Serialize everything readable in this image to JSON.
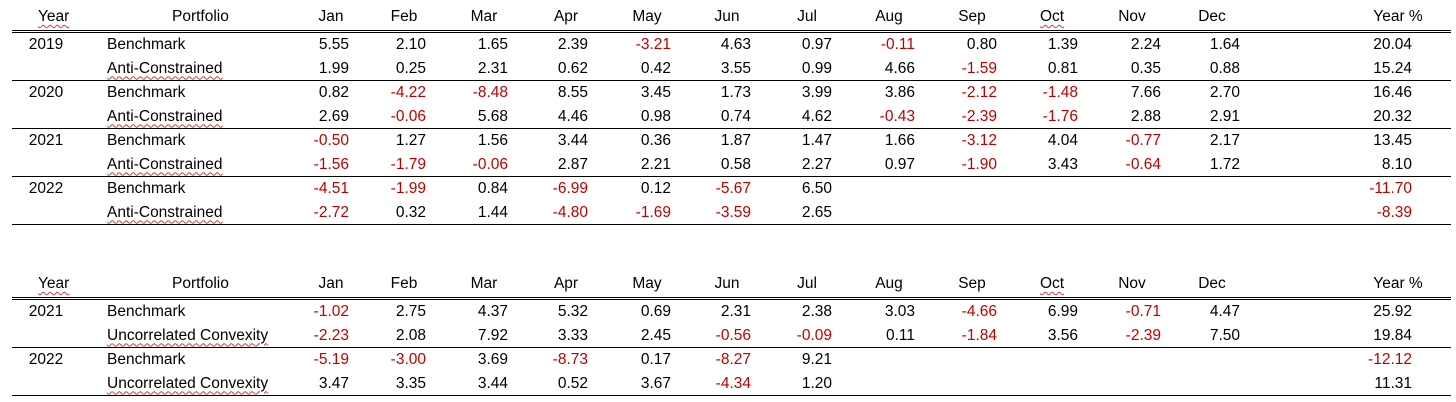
{
  "colors": {
    "negative": "#c00000",
    "text": "#000000",
    "spell_underline": "#d23b3b"
  },
  "headers": [
    "Year",
    "Portfolio",
    "Jan",
    "Feb",
    "Mar",
    "Apr",
    "May",
    "Jun",
    "Jul",
    "Aug",
    "Sep",
    "Oct",
    "Nov",
    "Dec",
    "Year %"
  ],
  "tables": [
    {
      "groups": [
        {
          "year": "2019",
          "rows": [
            {
              "portfolio": "Benchmark",
              "values": [
                "5.55",
                "2.10",
                "1.65",
                "2.39",
                "-3.21",
                "4.63",
                "0.97",
                "-0.11",
                "0.80",
                "1.39",
                "2.24",
                "1.64",
                "20.04"
              ]
            },
            {
              "portfolio": "Anti-Constrained",
              "values": [
                "1.99",
                "0.25",
                "2.31",
                "0.62",
                "0.42",
                "3.55",
                "0.99",
                "4.66",
                "-1.59",
                "0.81",
                "0.35",
                "0.88",
                "15.24"
              ]
            }
          ]
        },
        {
          "year": "2020",
          "rows": [
            {
              "portfolio": "Benchmark",
              "values": [
                "0.82",
                "-4.22",
                "-8.48",
                "8.55",
                "3.45",
                "1.73",
                "3.99",
                "3.86",
                "-2.12",
                "-1.48",
                "7.66",
                "2.70",
                "16.46"
              ]
            },
            {
              "portfolio": "Anti-Constrained",
              "values": [
                "2.69",
                "-0.06",
                "5.68",
                "4.46",
                "0.98",
                "0.74",
                "4.62",
                "-0.43",
                "-2.39",
                "-1.76",
                "2.88",
                "2.91",
                "20.32"
              ]
            }
          ]
        },
        {
          "year": "2021",
          "rows": [
            {
              "portfolio": "Benchmark",
              "values": [
                "-0.50",
                "1.27",
                "1.56",
                "3.44",
                "0.36",
                "1.87",
                "1.47",
                "1.66",
                "-3.12",
                "4.04",
                "-0.77",
                "2.17",
                "13.45"
              ]
            },
            {
              "portfolio": "Anti-Constrained",
              "values": [
                "-1.56",
                "-1.79",
                "-0.06",
                "2.87",
                "2.21",
                "0.58",
                "2.27",
                "0.97",
                "-1.90",
                "3.43",
                "-0.64",
                "1.72",
                "8.10"
              ]
            }
          ]
        },
        {
          "year": "2022",
          "rows": [
            {
              "portfolio": "Benchmark",
              "values": [
                "-4.51",
                "-1.99",
                "0.84",
                "-6.99",
                "0.12",
                "-5.67",
                "6.50",
                "",
                "",
                "",
                "",
                "",
                "-11.70"
              ]
            },
            {
              "portfolio": "Anti-Constrained",
              "values": [
                "-2.72",
                "0.32",
                "1.44",
                "-4.80",
                "-1.69",
                "-3.59",
                "2.65",
                "",
                "",
                "",
                "",
                "",
                "-8.39"
              ]
            }
          ]
        }
      ]
    },
    {
      "groups": [
        {
          "year": "2021",
          "rows": [
            {
              "portfolio": "Benchmark",
              "values": [
                "-1.02",
                "2.75",
                "4.37",
                "5.32",
                "0.69",
                "2.31",
                "2.38",
                "3.03",
                "-4.66",
                "6.99",
                "-0.71",
                "4.47",
                "25.92"
              ]
            },
            {
              "portfolio": "Uncorrelated Convexity",
              "values": [
                "-2.23",
                "2.08",
                "7.92",
                "3.33",
                "2.45",
                "-0.56",
                "-0.09",
                "0.11",
                "-1.84",
                "3.56",
                "-2.39",
                "7.50",
                "19.84"
              ]
            }
          ]
        },
        {
          "year": "2022",
          "rows": [
            {
              "portfolio": "Benchmark",
              "values": [
                "-5.19",
                "-3.00",
                "3.69",
                "-8.73",
                "0.17",
                "-8.27",
                "9.21",
                "",
                "",
                "",
                "",
                "",
                "-12.12"
              ]
            },
            {
              "portfolio": "Uncorrelated Convexity",
              "values": [
                "3.47",
                "3.35",
                "3.44",
                "0.52",
                "3.67",
                "-4.34",
                "1.20",
                "",
                "",
                "",
                "",
                "",
                "11.31"
              ]
            }
          ]
        }
      ]
    }
  ]
}
